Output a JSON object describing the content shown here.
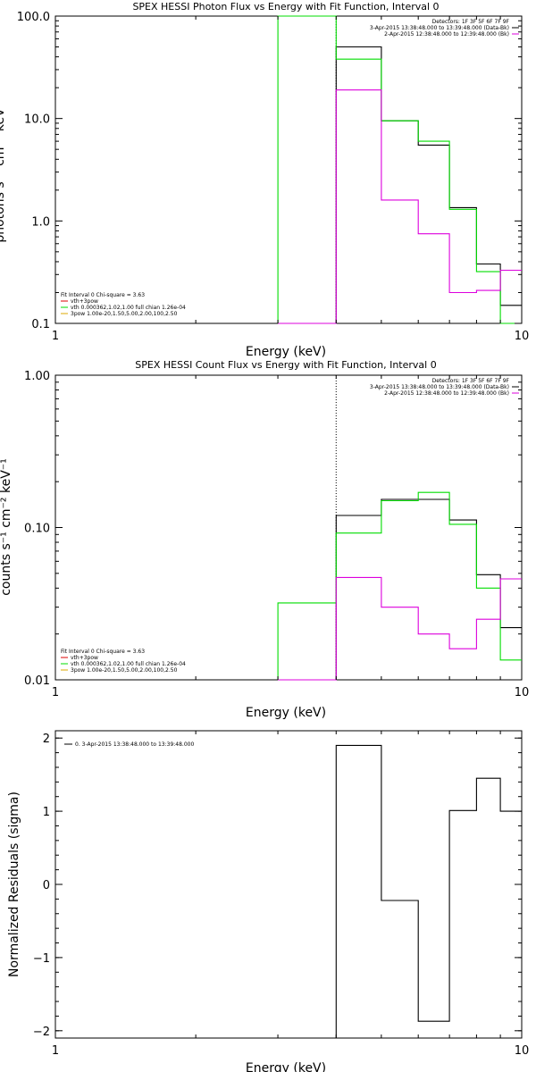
{
  "chart_data": [
    {
      "type": "line",
      "step": true,
      "title": "SPEX HESSI Photon Flux vs Energy with Fit Function, Interval 0",
      "xlabel": "Energy (keV)",
      "ylabel": "photons s⁻¹ cm⁻² keV⁻¹",
      "xscale": "log",
      "yscale": "log",
      "xlim": [
        1,
        10
      ],
      "ylim": [
        0.1,
        100
      ],
      "xticks": [
        {
          "v": 1,
          "label": "1"
        },
        {
          "v": 10,
          "label": "10"
        }
      ],
      "yticks": [
        {
          "v": 0.1,
          "label": "0.1"
        },
        {
          "v": 1,
          "label": "1.0"
        },
        {
          "v": 10,
          "label": "10.0"
        },
        {
          "v": 100,
          "label": "100.0"
        }
      ],
      "edges": [
        3.0,
        4.0,
        5.0,
        6.0,
        7.0,
        8.0,
        9.0,
        10.0
      ],
      "series": [
        {
          "key": "data",
          "color": "#000000",
          "values": [
            0.001,
            50,
            9.5,
            5.5,
            1.35,
            0.38,
            0.15
          ]
        },
        {
          "key": "vth",
          "color": "#00dd00",
          "values": [
            1000,
            38,
            9.5,
            6.0,
            1.3,
            0.32,
            0.001
          ]
        },
        {
          "key": "bkg",
          "color": "#dd00dd",
          "values": [
            0.001,
            19,
            1.6,
            0.75,
            0.2,
            0.21,
            0.33
          ]
        }
      ],
      "vlines": [
        {
          "x": 4.0,
          "color": "#000000",
          "dash": true
        }
      ],
      "legend_right": [
        {
          "text": "Detectors: 1F 3F 5F 6F 7F 9F",
          "color": null
        },
        {
          "text": "3-Apr-2015 13:38:48.000 to 13:39:48.000 (Data-Bk)",
          "color": "#000000"
        },
        {
          "text": "2-Apr-2015 12:38:48.000 to 12:39:48.000 (Bk)",
          "color": "#dd00dd"
        }
      ],
      "legend_left": [
        {
          "text": "Fit Interval 0   Chi-square = 3.63",
          "color": null
        },
        {
          "text": "vth+3pow",
          "color": "#dd0000"
        },
        {
          "text": "vth 0.000362,1.02,1.00  full chian 1.26e-04",
          "color": "#00dd00"
        },
        {
          "text": "3pow 1.00e-20,1.50,5.00,2.00,100,2.50",
          "color": "#ddaa00"
        }
      ]
    },
    {
      "type": "line",
      "step": true,
      "title": "SPEX HESSI Count Flux vs Energy with Fit Function, Interval 0",
      "xlabel": "Energy (keV)",
      "ylabel": "counts s⁻¹ cm⁻² keV⁻¹",
      "xscale": "log",
      "yscale": "log",
      "xlim": [
        1,
        10
      ],
      "ylim": [
        0.01,
        1
      ],
      "xticks": [
        {
          "v": 1,
          "label": "1"
        },
        {
          "v": 10,
          "label": "10"
        }
      ],
      "yticks": [
        {
          "v": 0.01,
          "label": "0.01"
        },
        {
          "v": 0.1,
          "label": "0.10"
        },
        {
          "v": 1,
          "label": "1.00"
        }
      ],
      "edges": [
        3.0,
        4.0,
        5.0,
        6.0,
        7.0,
        8.0,
        9.0,
        10.0
      ],
      "series": [
        {
          "key": "data",
          "color": "#000000",
          "values": [
            0.0001,
            0.12,
            0.153,
            0.153,
            0.112,
            0.049,
            0.022
          ]
        },
        {
          "key": "vth",
          "color": "#00dd00",
          "values": [
            0.032,
            0.092,
            0.15,
            0.17,
            0.105,
            0.04,
            0.0135
          ]
        },
        {
          "key": "bkg",
          "color": "#dd00dd",
          "values": [
            0.0001,
            0.047,
            0.03,
            0.02,
            0.016,
            0.025,
            0.046
          ]
        }
      ],
      "vlines": [
        {
          "x": 4.0,
          "color": "#000000",
          "dash": true
        }
      ],
      "legend_right": [
        {
          "text": "Detectors: 1F 3F 5F 6F 7F 9F",
          "color": null
        },
        {
          "text": "3-Apr-2015 13:38:48.000 to 13:39:48.000 (Data-Bk)",
          "color": "#000000"
        },
        {
          "text": "2-Apr-2015 12:38:48.000 to 12:39:48.000 (Bk)",
          "color": "#dd00dd"
        }
      ],
      "legend_left": [
        {
          "text": "Fit Interval 0   Chi-square = 3.63",
          "color": null
        },
        {
          "text": "vth+3pow",
          "color": "#dd0000"
        },
        {
          "text": "vth 0.000362,1.02,1.00  full chian 1.26e-04",
          "color": "#00dd00"
        },
        {
          "text": "3pow 1.00e-20,1.50,5.00,2.00,100,2.50",
          "color": "#ddaa00"
        }
      ]
    },
    {
      "type": "line",
      "step": true,
      "title": "",
      "xlabel": "Energy (keV)",
      "ylabel": "Normalized Residuals (sigma)",
      "xscale": "log",
      "yscale": "linear",
      "xlim": [
        1,
        10
      ],
      "ylim": [
        -2.1,
        2.1
      ],
      "xticks": [
        {
          "v": 1,
          "label": "1"
        },
        {
          "v": 10,
          "label": "10"
        }
      ],
      "yticks": [
        {
          "v": -2,
          "label": "−2"
        },
        {
          "v": -1,
          "label": "−1"
        },
        {
          "v": 0,
          "label": "0"
        },
        {
          "v": 1,
          "label": "1"
        },
        {
          "v": 2,
          "label": "2"
        }
      ],
      "edges": [
        4.0,
        5.0,
        6.0,
        7.0,
        8.0,
        9.0,
        10.0
      ],
      "series": [
        {
          "key": "resid",
          "color": "#000000",
          "values": [
            1.9,
            -0.22,
            -1.87,
            1.01,
            1.45,
            1.0
          ]
        }
      ],
      "vlines": [],
      "legend_right": [],
      "legend_left": [],
      "legend_top": [
        {
          "text": "0. 3-Apr-2015 13:38:48.000 to 13:39:48.000",
          "color": "#000000"
        }
      ]
    }
  ]
}
